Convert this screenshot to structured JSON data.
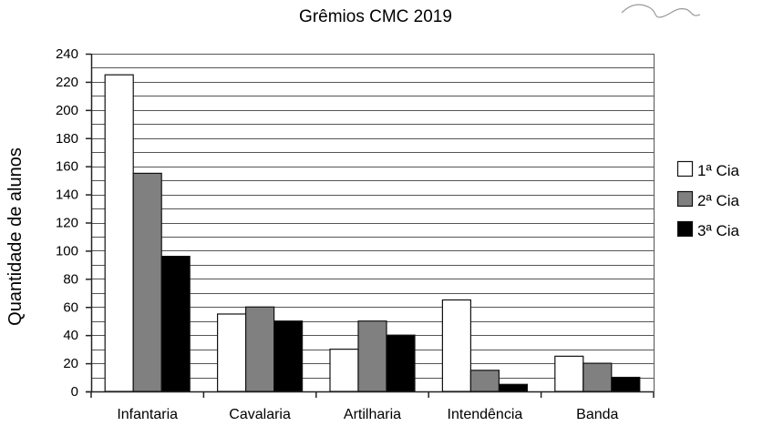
{
  "chart_data": {
    "type": "bar",
    "title": "Grêmios CMC 2019",
    "xlabel": "",
    "ylabel": "Quantidade de alunos",
    "categories": [
      "Infantaria",
      "Cavalaria",
      "Artilharia",
      "Intendência",
      "Banda"
    ],
    "series": [
      {
        "name": "1ª Cia",
        "color": "#ffffff",
        "values": [
          225,
          55,
          30,
          65,
          25
        ]
      },
      {
        "name": "2ª Cia",
        "color": "#808080",
        "values": [
          155,
          60,
          50,
          15,
          20
        ]
      },
      {
        "name": "3ª Cia",
        "color": "#000000",
        "values": [
          96,
          50,
          40,
          5,
          10
        ]
      }
    ],
    "ylim": [
      0,
      240
    ],
    "yticks": [
      0,
      20,
      40,
      60,
      80,
      100,
      120,
      140,
      160,
      180,
      200,
      220,
      240
    ],
    "minor_grid_step": 10,
    "grid": true,
    "legend_position": "right"
  }
}
